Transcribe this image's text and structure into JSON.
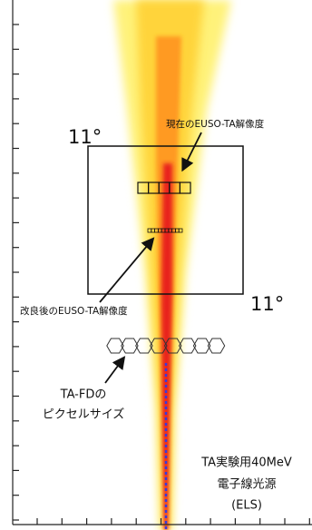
{
  "annotations": {
    "angle_top": "11°",
    "angle_bottom": "11°",
    "current_resolution": "現在のEUSO-TA解像度",
    "improved_resolution": "改良後のEUSO-TA解像度",
    "tafd_line1": "TA-FDの",
    "tafd_line2": "ピクセルサイズ",
    "els_line1": "TA実験用40MeV",
    "els_line2": "電子線光源",
    "els_line3": "(ELS)"
  }
}
